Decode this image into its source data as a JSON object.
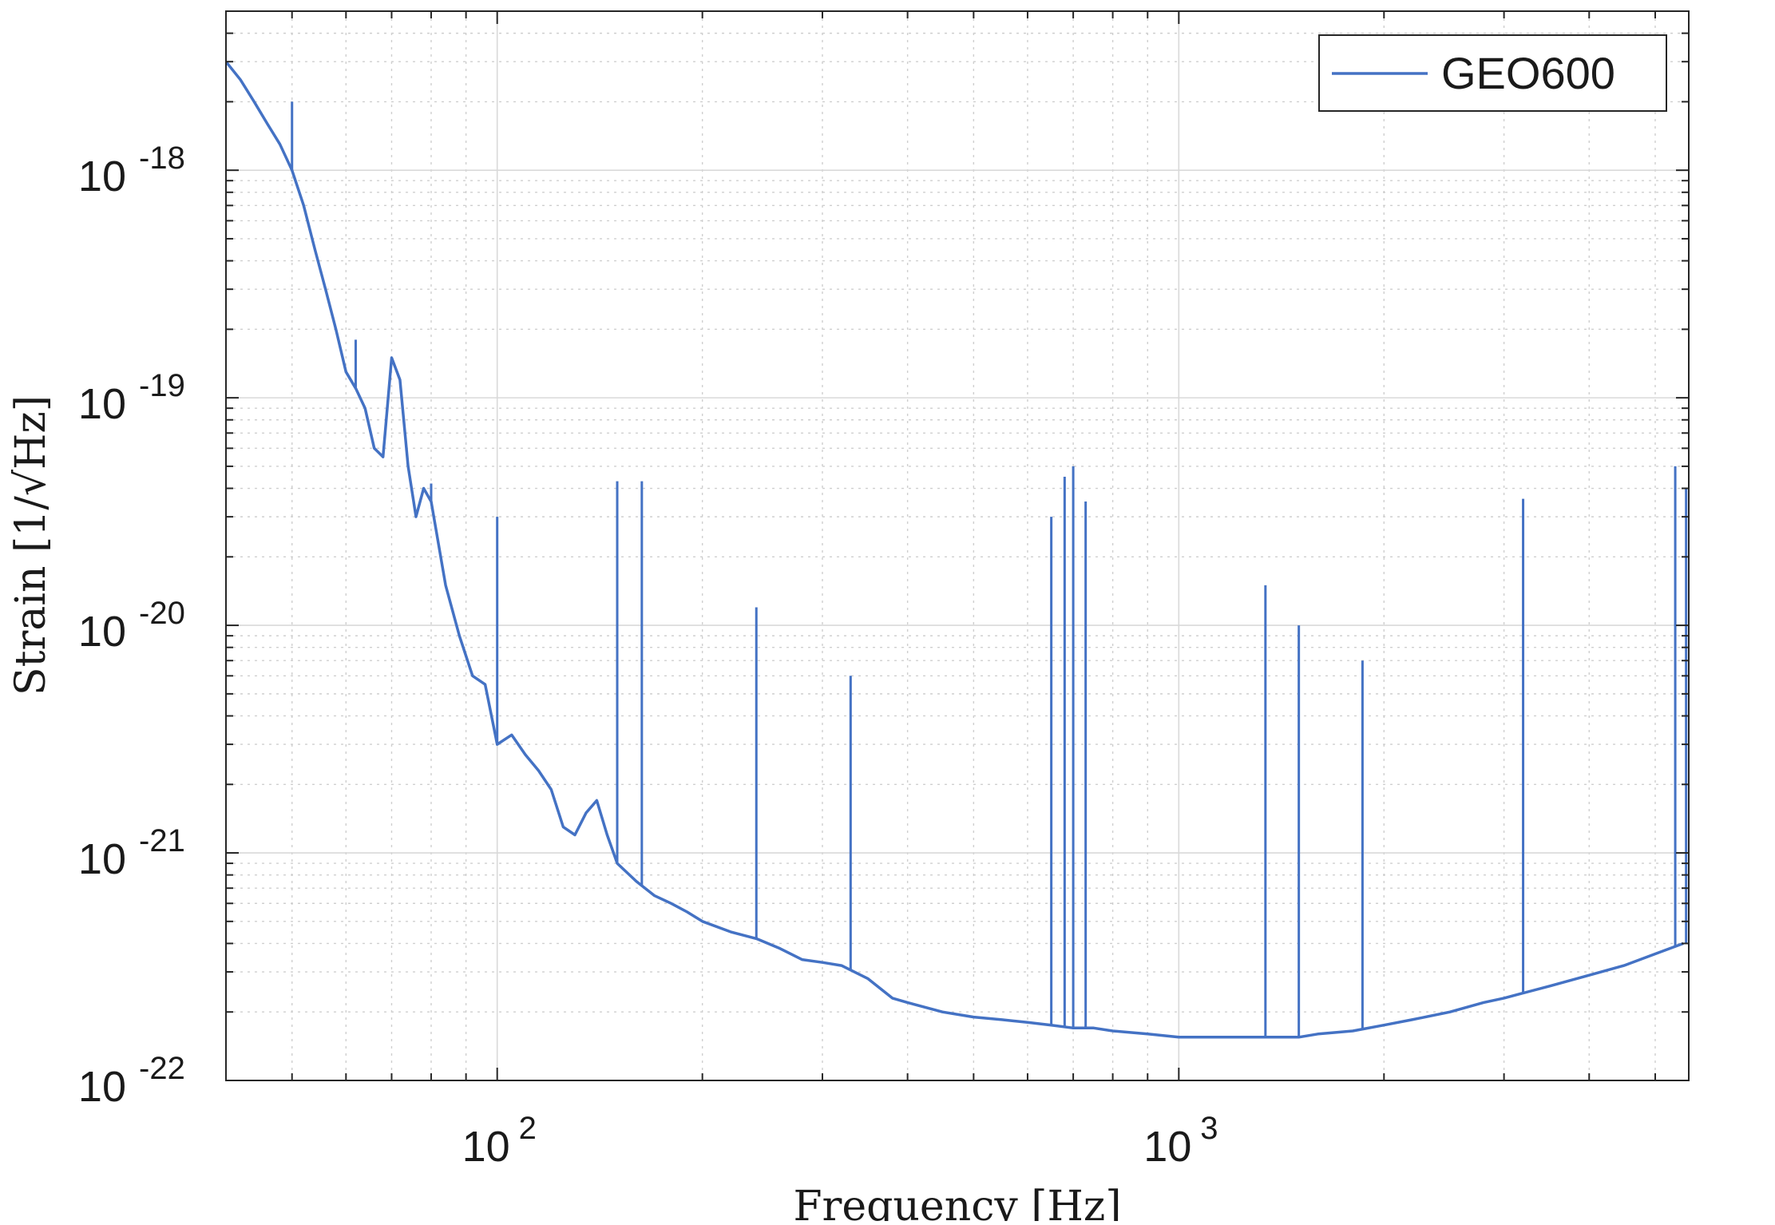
{
  "chart_data": {
    "type": "line",
    "title": "",
    "xlabel": "Frequency [Hz]",
    "ylabel": "Strain [1/√Hz]",
    "x_scale": "log",
    "y_scale": "log",
    "xlim": [
      40,
      5600
    ],
    "ylim": [
      1e-22,
      5e-18
    ],
    "grid": "on (major and minor)",
    "legend_position": "top-right",
    "x_ticks": [
      {
        "value": 100,
        "base": "10",
        "exp": "2"
      },
      {
        "value": 1000,
        "base": "10",
        "exp": "3"
      }
    ],
    "y_ticks": [
      {
        "value": 1e-22,
        "base": "10",
        "exp": "-22"
      },
      {
        "value": 1e-21,
        "base": "10",
        "exp": "-21"
      },
      {
        "value": 1e-20,
        "base": "10",
        "exp": "-20"
      },
      {
        "value": 1e-19,
        "base": "10",
        "exp": "-19"
      },
      {
        "value": 1e-18,
        "base": "10",
        "exp": "-18"
      }
    ],
    "series": [
      {
        "name": "GEO600",
        "color": "#4472c4",
        "x": [
          40,
          42,
          44,
          46,
          48,
          50,
          52,
          54,
          56,
          58,
          60,
          62,
          64,
          66,
          68,
          70,
          72,
          74,
          76,
          78,
          80,
          84,
          88,
          92,
          96,
          100,
          105,
          110,
          115,
          120,
          125,
          130,
          135,
          140,
          145,
          150,
          160,
          170,
          180,
          190,
          200,
          220,
          240,
          260,
          280,
          300,
          320,
          350,
          380,
          400,
          450,
          500,
          550,
          600,
          650,
          700,
          750,
          800,
          900,
          1000,
          1100,
          1200,
          1300,
          1400,
          1500,
          1600,
          1800,
          2000,
          2200,
          2500,
          2800,
          3000,
          3500,
          4000,
          4500,
          5000,
          5500
        ],
        "y": [
          3e-18,
          2.5e-18,
          2e-18,
          1.6e-18,
          1.3e-18,
          1e-18,
          7e-19,
          4.5e-19,
          3e-19,
          2e-19,
          1.3e-19,
          1.1e-19,
          9e-20,
          6e-20,
          5.5e-20,
          1.5e-19,
          1.2e-19,
          5e-20,
          3e-20,
          4e-20,
          3.5e-20,
          1.5e-20,
          9e-21,
          6e-21,
          5.5e-21,
          3e-21,
          3.3e-21,
          2.7e-21,
          2.3e-21,
          1.9e-21,
          1.3e-21,
          1.2e-21,
          1.5e-21,
          1.7e-21,
          1.2e-21,
          9e-22,
          7.5e-22,
          6.5e-22,
          6e-22,
          5.5e-22,
          5e-22,
          4.5e-22,
          4.2e-22,
          3.8e-22,
          3.4e-22,
          3.3e-22,
          3.2e-22,
          2.8e-22,
          2.3e-22,
          2.2e-22,
          2e-22,
          1.9e-22,
          1.85e-22,
          1.8e-22,
          1.75e-22,
          1.7e-22,
          1.7e-22,
          1.65e-22,
          1.6e-22,
          1.55e-22,
          1.55e-22,
          1.55e-22,
          1.55e-22,
          1.55e-22,
          1.55e-22,
          1.6e-22,
          1.65e-22,
          1.75e-22,
          1.85e-22,
          2e-22,
          2.2e-22,
          2.3e-22,
          2.6e-22,
          2.9e-22,
          3.2e-22,
          3.6e-22,
          4e-22
        ]
      }
    ],
    "spikes": [
      {
        "x": 50,
        "y": 2e-18
      },
      {
        "x": 62,
        "y": 1.8e-19
      },
      {
        "x": 80,
        "y": 4.2e-20
      },
      {
        "x": 100,
        "y": 3e-20
      },
      {
        "x": 150,
        "y": 4.3e-20
      },
      {
        "x": 163,
        "y": 4.3e-20
      },
      {
        "x": 240,
        "y": 1.2e-20
      },
      {
        "x": 330,
        "y": 6e-21
      },
      {
        "x": 650,
        "y": 3e-20
      },
      {
        "x": 680,
        "y": 4.5e-20
      },
      {
        "x": 700,
        "y": 5e-20
      },
      {
        "x": 730,
        "y": 3.5e-20
      },
      {
        "x": 1340,
        "y": 1.5e-20
      },
      {
        "x": 1500,
        "y": 1e-20
      },
      {
        "x": 1860,
        "y": 7e-21
      },
      {
        "x": 3200,
        "y": 3.6e-20
      },
      {
        "x": 5350,
        "y": 5e-20
      },
      {
        "x": 5550,
        "y": 4e-20
      }
    ]
  }
}
